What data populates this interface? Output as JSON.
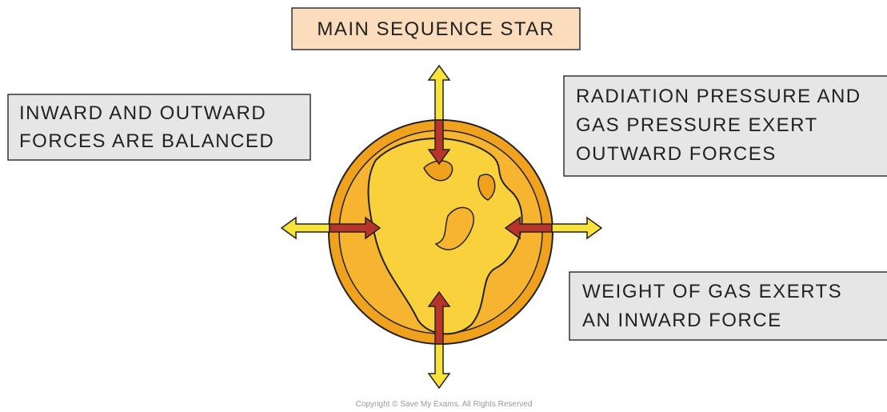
{
  "title": "MAIN SEQUENCE STAR",
  "notes": [
    {
      "lines": [
        "INWARD AND OUTWARD",
        "FORCES ARE BALANCED"
      ]
    },
    {
      "lines": [
        "RADIATION PRESSURE AND",
        "GAS PRESSURE EXERT",
        "OUTWARD FORCES"
      ]
    },
    {
      "lines": [
        "WEIGHT OF GAS EXERTS",
        "AN INWARD FORCE"
      ]
    }
  ],
  "copyright": "Copyright © Save My Exams. All Rights Reserved"
}
